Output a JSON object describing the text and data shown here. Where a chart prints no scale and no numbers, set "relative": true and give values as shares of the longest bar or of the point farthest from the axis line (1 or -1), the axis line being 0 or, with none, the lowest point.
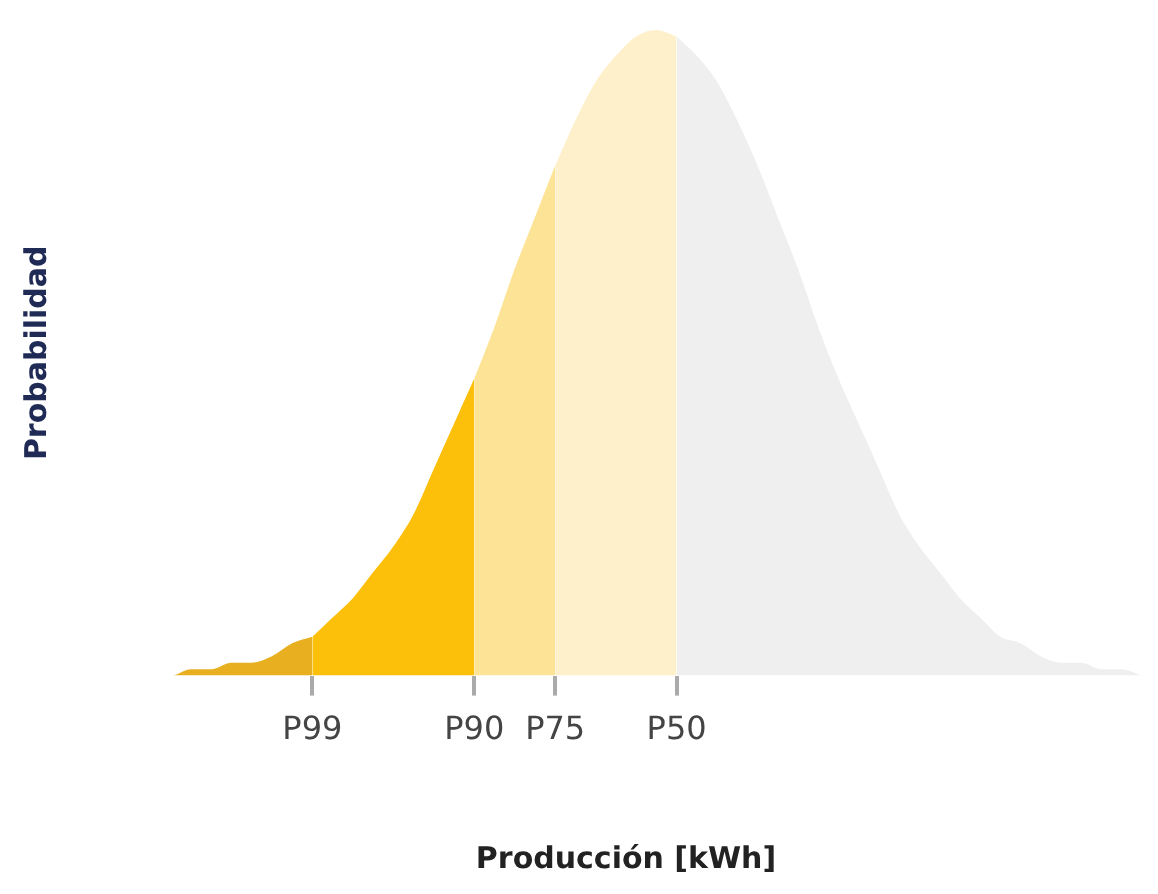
{
  "chart_data": {
    "type": "area",
    "relative": true,
    "xlabel": "Producción [kWh]",
    "ylabel": "Probabilidad",
    "categories": [
      null,
      null,
      null,
      null,
      null,
      null,
      null,
      null,
      null,
      null,
      "P99",
      null,
      null,
      null,
      null,
      null,
      null,
      null,
      "P90",
      null,
      null,
      null,
      "P75",
      null,
      null,
      null,
      null,
      null,
      "P50",
      null,
      null,
      null,
      null,
      null,
      null,
      null,
      null,
      null,
      null,
      null,
      null,
      null,
      null,
      null,
      null,
      null,
      null,
      null,
      null,
      null,
      null,
      null
    ],
    "series": [
      {
        "color": "#e8b020",
        "values": [
          0.0,
          0.0,
          0.0,
          0.0,
          0.01,
          0.01,
          0.02,
          0.02,
          0.03,
          0.05,
          0.06,
          null,
          null,
          null,
          null,
          null,
          null,
          null,
          null,
          null,
          null,
          null,
          null,
          null,
          null,
          null,
          null,
          null,
          null,
          null,
          null,
          null,
          null,
          null,
          null,
          null,
          null,
          null,
          null,
          null,
          null,
          null,
          null,
          null,
          null,
          null,
          null,
          null,
          null,
          null,
          null,
          null
        ]
      },
      {
        "color": "#fcbf0a",
        "values": [
          null,
          null,
          null,
          null,
          null,
          null,
          null,
          null,
          null,
          null,
          0.06,
          0.09,
          0.12,
          0.16,
          0.2,
          0.25,
          0.32,
          0.39,
          0.46,
          null,
          null,
          null,
          null,
          null,
          null,
          null,
          null,
          null,
          null,
          null,
          null,
          null,
          null,
          null,
          null,
          null,
          null,
          null,
          null,
          null,
          null,
          null,
          null,
          null,
          null,
          null,
          null,
          null,
          null,
          null,
          null,
          null
        ]
      },
      {
        "color": "#fde395",
        "values": [
          null,
          null,
          null,
          null,
          null,
          null,
          null,
          null,
          null,
          null,
          null,
          null,
          null,
          null,
          null,
          null,
          null,
          null,
          0.46,
          0.54,
          0.63,
          0.71,
          0.79,
          null,
          null,
          null,
          null,
          null,
          null,
          null,
          null,
          null,
          null,
          null,
          null,
          null,
          null,
          null,
          null,
          null,
          null,
          null,
          null,
          null,
          null,
          null,
          null,
          null,
          null,
          null,
          null,
          null
        ]
      },
      {
        "color": "#fff0cc",
        "values": [
          null,
          null,
          null,
          null,
          null,
          null,
          null,
          null,
          null,
          null,
          null,
          null,
          null,
          null,
          null,
          null,
          null,
          null,
          null,
          null,
          null,
          null,
          0.79,
          0.86,
          0.92,
          0.96,
          0.99,
          1.0,
          0.99,
          null,
          null,
          null,
          null,
          null,
          null,
          null,
          null,
          null,
          null,
          null,
          null,
          null,
          null,
          null,
          null,
          null,
          null,
          null,
          null,
          null,
          null,
          null
        ]
      },
      {
        "color": "#efefef",
        "values": [
          null,
          null,
          null,
          null,
          null,
          null,
          null,
          null,
          null,
          null,
          null,
          null,
          null,
          null,
          null,
          null,
          null,
          null,
          null,
          null,
          null,
          null,
          null,
          null,
          null,
          null,
          null,
          null,
          0.99,
          0.96,
          0.92,
          0.86,
          0.79,
          0.71,
          0.63,
          0.54,
          0.46,
          0.39,
          0.32,
          0.25,
          0.2,
          0.16,
          0.12,
          0.09,
          0.06,
          0.05,
          0.03,
          0.02,
          0.02,
          0.01,
          0.01,
          0.0
        ]
      }
    ]
  }
}
